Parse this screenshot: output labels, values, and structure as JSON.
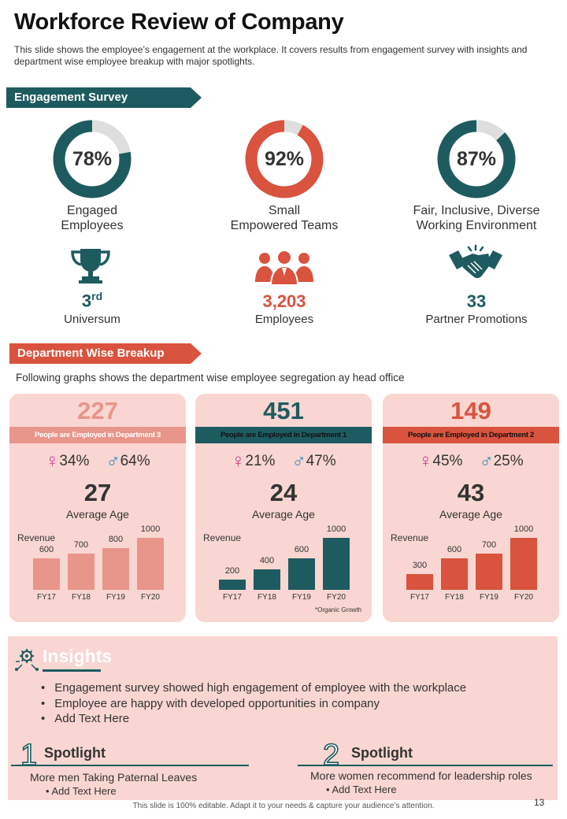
{
  "header": {
    "title": "Workforce Review of Company",
    "subtitle": "This slide shows the employee’s engagement  at the workplace. It covers results from engagement  survey with insights and department  wise employee breakup with major spotlights."
  },
  "engagement": {
    "ribbon": "Engagement Survey",
    "metrics": [
      {
        "value": "78%",
        "percent": 78,
        "label1": "Engaged",
        "label2": "Employees",
        "color": "#1e5b60"
      },
      {
        "value": "92%",
        "percent": 92,
        "label1": "Small",
        "label2": "Empowered Teams",
        "color": "#d9533e"
      },
      {
        "value": "87%",
        "percent": 87,
        "label1": "Fair, Inclusive, Diverse",
        "label2": "Working Environment",
        "color": "#1e5b60"
      }
    ],
    "stats": [
      {
        "value": "3",
        "sup": "rd",
        "label": "Universum",
        "icon": "trophy-icon",
        "color": "#1e5b60"
      },
      {
        "value": "3,203",
        "label": "Employees",
        "icon": "people-group-icon",
        "color": "#d9533e"
      },
      {
        "value": "33",
        "label": "Partner Promotions",
        "icon": "handshake-icon",
        "color": "#1e5b60"
      }
    ]
  },
  "department": {
    "ribbon": "Department Wise Breakup",
    "intro": "Following graphs shows the department wise employee segregation ay head office",
    "cards": [
      {
        "total": "227",
        "band": "People are Employed in Department 3",
        "female": "34%",
        "male": "64%",
        "age": "27",
        "age_label": "Average Age",
        "revenue_label": "Revenue",
        "accent": "#e8968a",
        "band_text": "#ffffff",
        "band_bg": "#e8968a"
      },
      {
        "total": "451",
        "band": "People are Employed in Department 1",
        "female": "21%",
        "male": "47%",
        "age": "24",
        "age_label": "Average Age",
        "revenue_label": "Revenue",
        "accent": "#1e5b60",
        "band_text": "#111111",
        "band_bg": "#1e5b60",
        "note": "*Organic Growth"
      },
      {
        "total": "149",
        "band": "People are Employed in Department 2",
        "female": "45%",
        "male": "25%",
        "age": "43",
        "age_label": "Average Age",
        "revenue_label": "Revenue",
        "accent": "#d9533e",
        "band_text": "#111111",
        "band_bg": "#d9533e"
      }
    ],
    "fem_symbol": "♀",
    "mal_symbol": "♂"
  },
  "chart_data": [
    {
      "type": "bar",
      "title": "Revenue",
      "categories": [
        "FY17",
        "FY18",
        "FY19",
        "FY20"
      ],
      "values": [
        600,
        700,
        800,
        1000
      ],
      "ylim": [
        0,
        1000
      ]
    },
    {
      "type": "bar",
      "title": "Revenue",
      "categories": [
        "FY17",
        "FY18",
        "FY19",
        "FY20"
      ],
      "values": [
        200,
        400,
        600,
        1000
      ],
      "ylim": [
        0,
        1000
      ]
    },
    {
      "type": "bar",
      "title": "Revenue",
      "categories": [
        "FY17",
        "FY18",
        "FY19",
        "FY20"
      ],
      "values": [
        300,
        600,
        700,
        1000
      ],
      "ylim": [
        0,
        1000
      ]
    }
  ],
  "insights": {
    "title": "Insights",
    "bullets": [
      "Engagement survey showed high engagement of employee with the workplace",
      "Employee are happy with developed opportunities in company",
      "Add Text Here"
    ]
  },
  "spotlights": [
    {
      "num": "1",
      "title": "Spotlight",
      "text": "More men Taking Paternal Leaves",
      "sub": "• Add Text Here"
    },
    {
      "num": "2",
      "title": "Spotlight",
      "text": "More women recommend for leadership roles",
      "sub": "• Add Text Here"
    }
  ],
  "footer": {
    "text": "This slide is 100% editable.  Adapt it to your needs & capture your audience’s attention.",
    "page": "13"
  }
}
